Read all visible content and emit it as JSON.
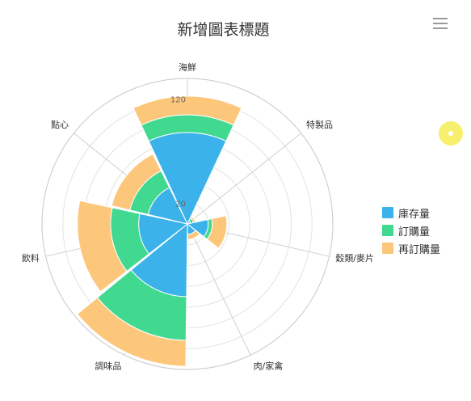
{
  "title": "新增圖表標題",
  "menu_icon": "hamburger-menu-icon",
  "chart_data": {
    "type": "polar-stacked-bar",
    "title": "新增圖表標題",
    "categories": [
      "海鮮",
      "特製品",
      "穀類/麥片",
      "肉/家禽",
      "調味品",
      "飲料",
      "點心"
    ],
    "radial_axis": {
      "min": 0,
      "max": 140,
      "ticks": [
        20,
        40,
        60,
        80,
        100,
        120,
        140
      ],
      "tick_labels_visible": [
        "20",
        "120"
      ]
    },
    "series": [
      {
        "name": "庫存量",
        "color": "#3bb3ea",
        "values": [
          88,
          3,
          20,
          10,
          70,
          47,
          39
        ]
      },
      {
        "name": "訂購量",
        "color": "#41d98f",
        "values": [
          17,
          3,
          4,
          0,
          42,
          27,
          18
        ]
      },
      {
        "name": "再訂購量",
        "color": "#fdc77b",
        "values": [
          18,
          2,
          14,
          5,
          25,
          32,
          18
        ]
      }
    ],
    "grid": true,
    "legend_position": "right"
  }
}
